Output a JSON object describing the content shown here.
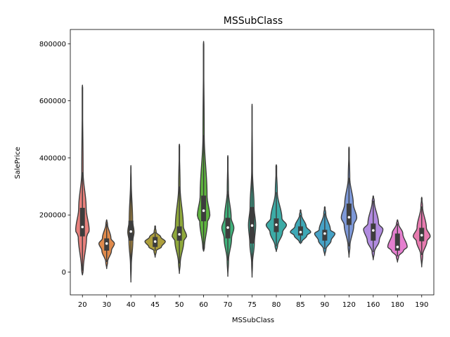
{
  "chart_data": {
    "type": "violin",
    "title": "MSSubClass",
    "xlabel": "MSSubClass",
    "ylabel": "SalePrice",
    "categories": [
      "20",
      "30",
      "40",
      "45",
      "50",
      "60",
      "70",
      "75",
      "80",
      "85",
      "90",
      "120",
      "160",
      "180",
      "190"
    ],
    "ylim": [
      -80000,
      850000
    ],
    "yticks": [
      0,
      200000,
      400000,
      600000,
      800000
    ],
    "ytick_labels": [
      "0",
      "200000",
      "400000",
      "600000",
      "800000"
    ],
    "grid": false,
    "legend": "none",
    "series": [
      {
        "category": "20",
        "color": "#e8807c",
        "min": -10000,
        "q1": 125000,
        "median": 158000,
        "q3": 225000,
        "max": 655000,
        "wl": 5000,
        "wh": 350000,
        "mode": 145000,
        "maxw": 0.28
      },
      {
        "category": "30",
        "color": "#e08a4c",
        "min": 12000,
        "q1": 75000,
        "median": 100000,
        "q3": 118000,
        "max": 183000,
        "wl": 35000,
        "wh": 170000,
        "mode": 100000,
        "maxw": 0.32
      },
      {
        "category": "40",
        "color": "#c59a3e",
        "min": -35000,
        "q1": 110000,
        "median": 142000,
        "q3": 180000,
        "max": 373000,
        "wl": 20000,
        "wh": 320000,
        "mode": 140000,
        "maxw": 0.13
      },
      {
        "category": "45",
        "color": "#ad9f3c",
        "min": 52000,
        "q1": 88000,
        "median": 107000,
        "q3": 123000,
        "max": 162000,
        "wl": 75000,
        "wh": 140000,
        "mode": 107000,
        "maxw": 0.42
      },
      {
        "category": "50",
        "color": "#8fa93b",
        "min": -5000,
        "q1": 110000,
        "median": 132000,
        "q3": 160000,
        "max": 448000,
        "wl": 30000,
        "wh": 300000,
        "mode": 125000,
        "maxw": 0.3
      },
      {
        "category": "60",
        "color": "#5eb43f",
        "min": 73000,
        "q1": 178000,
        "median": 215000,
        "q3": 268000,
        "max": 808000,
        "wl": 80000,
        "wh": 480000,
        "mode": 195000,
        "maxw": 0.26
      },
      {
        "category": "70",
        "color": "#3fb27b",
        "min": -15000,
        "q1": 118000,
        "median": 156000,
        "q3": 190000,
        "max": 408000,
        "wl": 40000,
        "wh": 285000,
        "mode": 155000,
        "maxw": 0.25
      },
      {
        "category": "75",
        "color": "#3baf95",
        "min": -18000,
        "q1": 100000,
        "median": 163000,
        "q3": 228000,
        "max": 588000,
        "wl": 30000,
        "wh": 360000,
        "mode": 165000,
        "maxw": 0.15
      },
      {
        "category": "80",
        "color": "#3caba6",
        "min": 72000,
        "q1": 140000,
        "median": 166000,
        "q3": 188000,
        "max": 376000,
        "wl": 90000,
        "wh": 280000,
        "mode": 165000,
        "maxw": 0.42
      },
      {
        "category": "85",
        "color": "#3ea8b6",
        "min": 100000,
        "q1": 128000,
        "median": 140000,
        "q3": 160000,
        "max": 218000,
        "wl": 105000,
        "wh": 200000,
        "mode": 140000,
        "maxw": 0.42
      },
      {
        "category": "90",
        "color": "#46a2c6",
        "min": 58000,
        "q1": 110000,
        "median": 135000,
        "q3": 148000,
        "max": 229000,
        "wl": 80000,
        "wh": 205000,
        "mode": 135000,
        "maxw": 0.42
      },
      {
        "category": "120",
        "color": "#7d98d8",
        "min": 52000,
        "q1": 165000,
        "median": 192000,
        "q3": 240000,
        "max": 438000,
        "wl": 90000,
        "wh": 330000,
        "mode": 190000,
        "maxw": 0.32
      },
      {
        "category": "160",
        "color": "#b18be0",
        "min": 43000,
        "q1": 110000,
        "median": 146000,
        "q3": 170000,
        "max": 267000,
        "wl": 70000,
        "wh": 250000,
        "mode": 150000,
        "maxw": 0.4
      },
      {
        "category": "180",
        "color": "#e57fcf",
        "min": 35000,
        "q1": 75000,
        "median": 88000,
        "q3": 135000,
        "max": 183000,
        "wl": 55000,
        "wh": 170000,
        "mode": 88000,
        "maxw": 0.4
      },
      {
        "category": "190",
        "color": "#e87bb0",
        "min": 18000,
        "q1": 108000,
        "median": 129000,
        "q3": 155000,
        "max": 262000,
        "wl": 60000,
        "wh": 230000,
        "mode": 125000,
        "maxw": 0.35
      }
    ]
  }
}
